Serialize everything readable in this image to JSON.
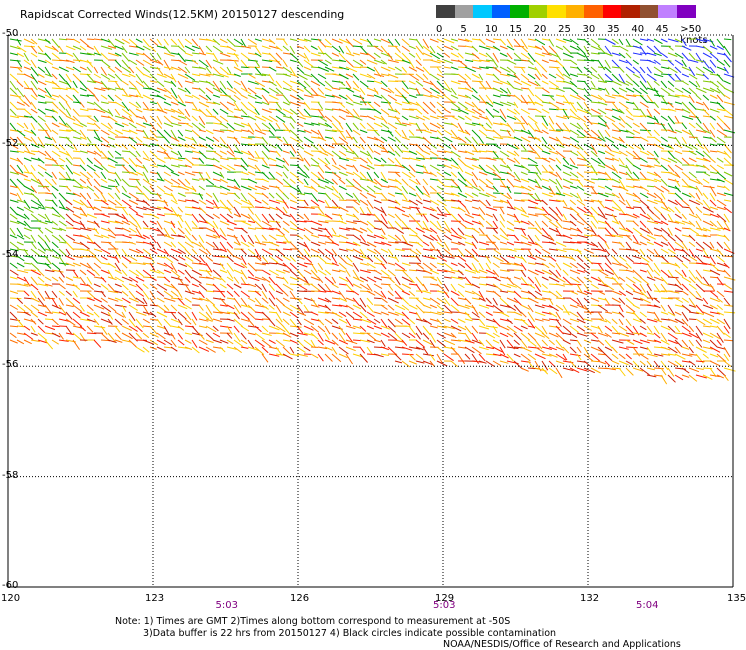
{
  "title": "Rapidscat Corrected Winds(12.5KM) 20150127 descending",
  "legend": {
    "colors": [
      "#404040",
      "#a0a0a0",
      "#00c8ff",
      "#0060ff",
      "#00b000",
      "#a0d000",
      "#ffe000",
      "#ffb000",
      "#ff6000",
      "#ff0000",
      "#b02000",
      "#905030",
      "#c080ff",
      "#8000c0"
    ],
    "labels": [
      "0",
      "5",
      "10",
      "15",
      "20",
      "25",
      "30",
      "35",
      "40",
      "45",
      ">50 knots"
    ]
  },
  "axes": {
    "lat_labels": [
      "-50",
      "-52",
      "-54",
      "-56",
      "-58",
      "-60"
    ],
    "lon_labels": [
      "120",
      "123",
      "126",
      "129",
      "132",
      "135"
    ],
    "lat_values": [
      -50,
      -52,
      -54,
      -56,
      -58,
      -60
    ],
    "lon_values": [
      120,
      123,
      126,
      129,
      132,
      135
    ]
  },
  "times": [
    {
      "label": "5:03",
      "lon": 124.5
    },
    {
      "label": "5:03",
      "lon": 129.0
    },
    {
      "label": "5:04",
      "lon": 133.2
    }
  ],
  "notes": {
    "line1": "Note: 1) Times are GMT 2)Times along bottom correspond to measurement at -50S",
    "line2": "3)Data buffer is 22 hrs from 20150127 4) Black circles indicate possible contamination",
    "line3": "NOAA/NESDIS/Office of Research and Applications"
  }
}
